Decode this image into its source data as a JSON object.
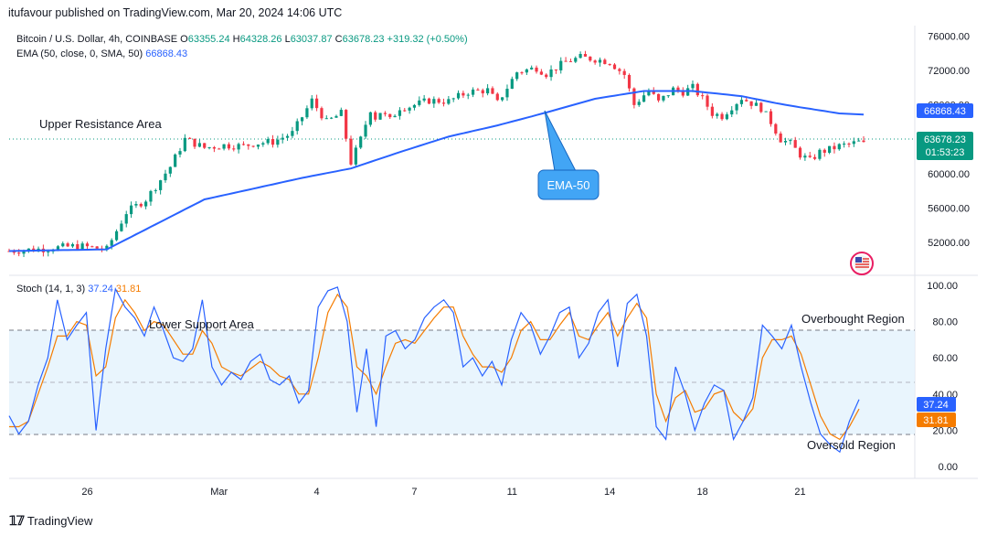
{
  "header": {
    "publisher": "itufavour published on TradingView.com, Mar 20, 2024 14:06 UTC"
  },
  "symbol_line": {
    "name": "Bitcoin / U.S. Dollar, 4h, COINBASE",
    "open_label": "O",
    "open": "63355.24",
    "high_label": "H",
    "high": "64328.26",
    "low_label": "L",
    "low": "63037.87",
    "close_label": "C",
    "close": "63678.23",
    "change": "+319.32 (+0.50%)"
  },
  "ema_line": {
    "label": "EMA (50, close, 0, SMA, 50)",
    "value": "66868.43"
  },
  "stoch_line": {
    "label": "Stoch (14, 1, 3)",
    "k": "37.24",
    "d": "31.81"
  },
  "annotations": {
    "upper_resistance": "Upper Resistance Area",
    "ema_callout": "EMA-50",
    "lower_support": "Lower Support Area",
    "overbought": "Overbought Region",
    "oversold": "Oversold Region"
  },
  "price_tags": {
    "ema": "66868.43",
    "price": "63678.23",
    "countdown": "01:53:23"
  },
  "stoch_tags": {
    "k": "37.24",
    "d": "31.81"
  },
  "footer": {
    "brand": "TradingView"
  },
  "colors": {
    "up": "#089981",
    "down": "#f23645",
    "ema": "#2962ff",
    "k": "#2962ff",
    "d": "#f57c00",
    "band": "#e3f2fd"
  },
  "chart_data": [
    {
      "type": "candlestick",
      "title": "Bitcoin / U.S. Dollar, 4h, COINBASE",
      "x_ticks": [
        "26",
        "Mar",
        "4",
        "7",
        "11",
        "14",
        "18",
        "21"
      ],
      "y_ticks": [
        "76000.00",
        "72000.00",
        "68000.00",
        "64000.00",
        "60000.00",
        "56000.00",
        "52000.00"
      ],
      "ylim": [
        48500,
        77200
      ],
      "series": [
        {
          "name": "EMA (50, close, 0, SMA, 50)",
          "x": [
            0,
            20,
            40,
            60,
            70,
            80,
            90,
            100,
            110,
            120,
            130,
            140,
            150,
            157,
            161,
            170,
            175
          ],
          "values": [
            51000,
            51200,
            57000,
            59500,
            60600,
            62500,
            64300,
            65600,
            67100,
            68700,
            69600,
            69600,
            69000,
            68200,
            67800,
            67000,
            66868
          ]
        }
      ],
      "close_path": {
        "x": [
          0,
          8,
          14,
          20,
          24,
          28,
          33,
          36,
          40,
          44,
          48,
          50,
          54,
          58,
          62,
          65,
          68,
          70,
          72,
          74,
          75,
          76,
          78,
          80,
          82,
          86,
          90,
          94,
          98,
          100,
          104,
          108,
          110,
          114,
          117,
          120,
          123,
          126,
          128,
          131,
          133,
          136,
          138,
          140,
          142,
          144,
          146,
          148,
          150,
          152,
          154,
          156,
          158,
          160,
          162,
          164,
          166,
          168,
          170,
          172,
          174,
          175
        ],
        "values": [
          51000,
          51300,
          51600,
          51200,
          55500,
          57000,
          60800,
          64000,
          63000,
          63300,
          63200,
          63500,
          63700,
          64700,
          68500,
          66000,
          67000,
          61300,
          64000,
          67500,
          66500,
          67200,
          66200,
          67700,
          67800,
          68500,
          68400,
          69500,
          69700,
          68200,
          71800,
          72300,
          71600,
          73000,
          73500,
          73300,
          73000,
          71500,
          68000,
          69700,
          68300,
          69800,
          69500,
          70000,
          68700,
          67000,
          66700,
          67800,
          68800,
          68200,
          67600,
          66000,
          64000,
          63500,
          62200,
          61500,
          62500,
          62800,
          63200,
          63400,
          63678,
          63678
        ]
      },
      "last_price": 63678.23
    },
    {
      "type": "line",
      "title": "Stoch (14, 1, 3)",
      "y_ticks": [
        "100.00",
        "80.00",
        "60.00",
        "40.00",
        "20.00",
        "0.00"
      ],
      "ylim": [
        -5,
        104
      ],
      "band": [
        20,
        80
      ],
      "series": [
        {
          "name": "%K",
          "values": [
            28,
            18,
            25,
            45,
            60,
            92,
            70,
            78,
            85,
            20,
            65,
            98,
            88,
            82,
            72,
            88,
            75,
            60,
            58,
            65,
            92,
            55,
            45,
            52,
            48,
            58,
            62,
            48,
            45,
            50,
            35,
            42,
            88,
            97,
            99,
            80,
            30,
            65,
            22,
            72,
            75,
            65,
            70,
            82,
            88,
            92,
            85,
            55,
            60,
            50,
            58,
            45,
            70,
            85,
            78,
            62,
            72,
            85,
            88,
            60,
            68,
            85,
            92,
            55,
            90,
            95,
            72,
            22,
            15,
            55,
            40,
            20,
            35,
            45,
            42,
            15,
            25,
            38,
            78,
            72,
            65,
            78,
            55,
            35,
            18,
            12,
            8,
            25,
            37
          ]
        },
        {
          "name": "%D",
          "values": [
            22,
            22,
            25,
            40,
            55,
            72,
            72,
            80,
            78,
            50,
            55,
            82,
            92,
            85,
            75,
            80,
            78,
            70,
            62,
            62,
            75,
            68,
            55,
            52,
            50,
            54,
            58,
            55,
            50,
            48,
            40,
            40,
            60,
            85,
            95,
            88,
            55,
            50,
            40,
            55,
            68,
            70,
            68,
            75,
            82,
            88,
            88,
            72,
            62,
            55,
            55,
            52,
            60,
            75,
            80,
            70,
            70,
            78,
            85,
            72,
            70,
            78,
            85,
            72,
            82,
            90,
            82,
            40,
            25,
            38,
            42,
            30,
            32,
            40,
            42,
            30,
            25,
            32,
            60,
            70,
            70,
            72,
            62,
            45,
            28,
            18,
            15,
            22,
            31.81
          ]
        }
      ]
    }
  ]
}
